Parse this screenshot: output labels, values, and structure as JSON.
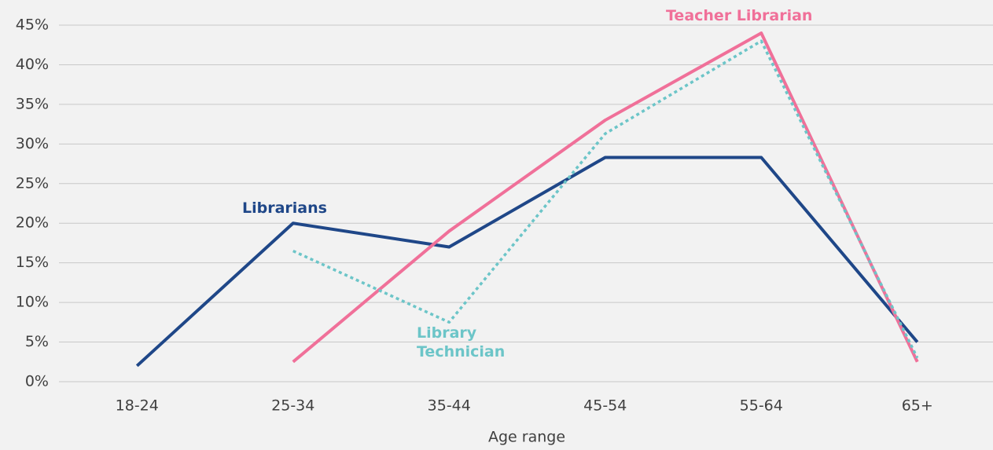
{
  "chart_data": {
    "type": "line",
    "x_label": "Age range",
    "categories": [
      "18-24",
      "25-34",
      "35-44",
      "45-54",
      "55-64",
      "65+"
    ],
    "series": [
      {
        "name": "Librarians",
        "color": "#1f4788",
        "line_style": "solid",
        "values": [
          2,
          20,
          17,
          28.3,
          28.3,
          5
        ]
      },
      {
        "name": "Teacher Librarian",
        "color": "#f07099",
        "line_style": "solid",
        "values": [
          null,
          2.5,
          19,
          33,
          44,
          2.5
        ]
      },
      {
        "name": "Library Technician",
        "color": "#6cc5c8",
        "line_style": "dotted",
        "values": [
          null,
          16.5,
          7.5,
          31.3,
          43,
          3
        ]
      }
    ],
    "ylim": [
      0,
      45
    ],
    "yticks": [
      {
        "value": 0,
        "label": "0%"
      },
      {
        "value": 5,
        "label": "5%"
      },
      {
        "value": 10,
        "label": "10%"
      },
      {
        "value": 15,
        "label": "15%"
      },
      {
        "value": 20,
        "label": "20%"
      },
      {
        "value": 25,
        "label": "25%"
      },
      {
        "value": 30,
        "label": "30%"
      },
      {
        "value": 35,
        "label": "35%"
      },
      {
        "value": 40,
        "label": "40%"
      },
      {
        "value": 45,
        "label": "45%"
      }
    ],
    "grid": true
  }
}
